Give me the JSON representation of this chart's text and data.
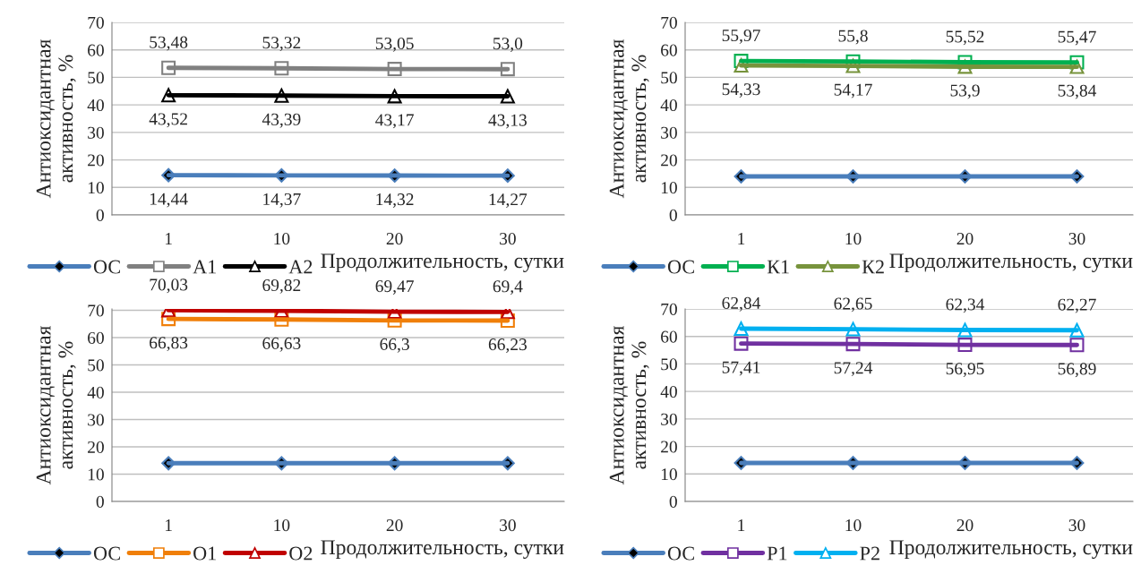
{
  "chart_data": [
    {
      "type": "line",
      "categories": [
        "1",
        "10",
        "20",
        "30"
      ],
      "xlabel": "Продолжительность, сутки",
      "ylabel": "Антиоксидантная\nактивность, %",
      "ylim": [
        0,
        70
      ],
      "yticks": [
        0,
        10,
        20,
        30,
        40,
        50,
        60,
        70
      ],
      "grid": "y",
      "legend": "bottom",
      "series": [
        {
          "name": "ОС",
          "color": "#4a7ebb",
          "marker": "diamond",
          "values": [
            14.44,
            14.37,
            14.32,
            14.27
          ],
          "value_labels": [
            "14,44",
            "14,37",
            "14,32",
            "14,27"
          ]
        },
        {
          "name": "А1",
          "color": "#808080",
          "marker": "square",
          "values": [
            53.48,
            53.32,
            53.05,
            53.0
          ],
          "value_labels": [
            "53,48",
            "53,32",
            "53,05",
            "53,0"
          ]
        },
        {
          "name": "А2",
          "color": "#000000",
          "marker": "triangle",
          "values": [
            43.52,
            43.39,
            43.17,
            43.13
          ],
          "value_labels": [
            "43,52",
            "43,39",
            "43,17",
            "43,13"
          ]
        }
      ]
    },
    {
      "type": "line",
      "categories": [
        "1",
        "10",
        "20",
        "30"
      ],
      "xlabel": "Продолжительность, сутки",
      "ylabel": "Антиоксидантная\nактивность, %",
      "ylim": [
        0,
        70
      ],
      "yticks": [
        0,
        10,
        20,
        30,
        40,
        50,
        60,
        70
      ],
      "grid": "y",
      "legend": "bottom",
      "series": [
        {
          "name": "ОС",
          "color": "#4a7ebb",
          "marker": "diamond",
          "values": [
            14,
            14,
            14,
            14
          ]
        },
        {
          "name": "К1",
          "color": "#00b050",
          "marker": "square",
          "values": [
            55.97,
            55.8,
            55.52,
            55.47
          ],
          "value_labels": [
            "55,97",
            "55,8",
            "55,52",
            "55,47"
          ]
        },
        {
          "name": "К2",
          "color": "#77933c",
          "marker": "triangle",
          "values": [
            54.33,
            54.17,
            53.9,
            53.84
          ],
          "value_labels": [
            "54,33",
            "54,17",
            "53,9",
            "53,84"
          ]
        }
      ]
    },
    {
      "type": "line",
      "categories": [
        "1",
        "10",
        "20",
        "30"
      ],
      "xlabel": "Продолжительность, сутки",
      "ylabel": "Антиоксидантная\nактивность, %",
      "ylim": [
        0,
        70.5
      ],
      "yticks": [
        0,
        10,
        20,
        30,
        40,
        50,
        60,
        70
      ],
      "grid": "y",
      "legend": "bottom",
      "series": [
        {
          "name": "ОС",
          "color": "#4a7ebb",
          "marker": "diamond",
          "values": [
            14,
            14,
            14,
            14
          ]
        },
        {
          "name": "О1",
          "color": "#f07f09",
          "marker": "square",
          "values": [
            66.83,
            66.63,
            66.3,
            66.23
          ],
          "value_labels": [
            "66,83",
            "66,63",
            "66,3",
            "66,23"
          ]
        },
        {
          "name": "О2",
          "color": "#c00000",
          "marker": "triangle",
          "values": [
            70.03,
            69.82,
            69.47,
            69.4
          ],
          "value_labels": [
            "70,03",
            "69,82",
            "69,47",
            "69,4"
          ]
        }
      ]
    },
    {
      "type": "line",
      "categories": [
        "1",
        "10",
        "20",
        "30"
      ],
      "xlabel": "Продолжительность, сутки",
      "ylabel": "Антиоксидантная\nактивность, %",
      "ylim": [
        0,
        70
      ],
      "yticks": [
        0,
        10,
        20,
        30,
        40,
        50,
        60,
        70
      ],
      "grid": "y",
      "legend": "bottom",
      "series": [
        {
          "name": "ОС",
          "color": "#4a7ebb",
          "marker": "diamond",
          "values": [
            14,
            14,
            14,
            14
          ]
        },
        {
          "name": "Р1",
          "color": "#7030a0",
          "marker": "square",
          "values": [
            57.41,
            57.24,
            56.95,
            56.89
          ],
          "value_labels": [
            "57,41",
            "57,24",
            "56,95",
            "56,89"
          ]
        },
        {
          "name": "Р2",
          "color": "#00b0f0",
          "marker": "triangle",
          "values": [
            62.84,
            62.65,
            62.34,
            62.27
          ],
          "value_labels": [
            "62,84",
            "62,65",
            "62,34",
            "62,27"
          ]
        }
      ]
    }
  ]
}
